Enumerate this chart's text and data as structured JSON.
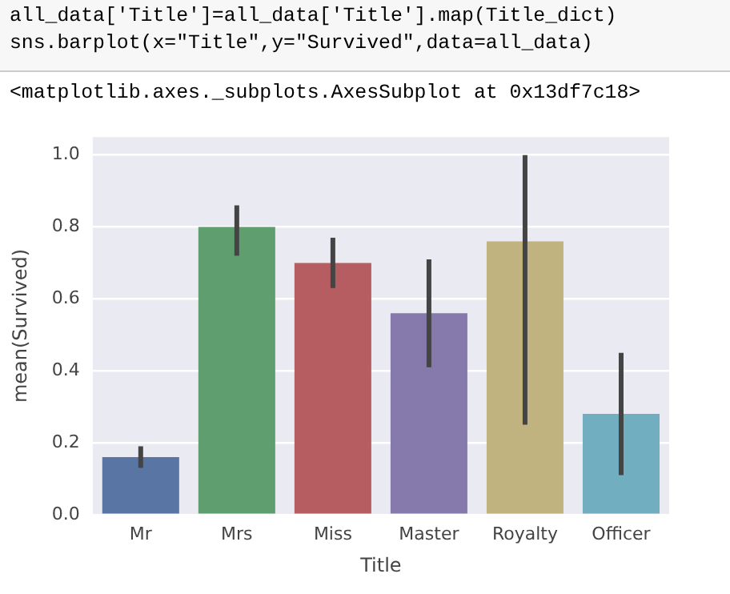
{
  "chart_data": {
    "type": "bar",
    "xlabel": "Title",
    "ylabel": "mean(Survived)",
    "annotations": [
      "all_data['Title']=all_data['Title'].map(Title_dict)",
      "sns.barplot(x=\"Title\",y=\"Survived\",data=all_data)",
      "<matplotlib.axes._subplots.AxesSubplot at 0x13df7c18>"
    ],
    "categories": [
      "Mr",
      "Mrs",
      "Miss",
      "Master",
      "Royalty",
      "Officer"
    ],
    "values": [
      0.16,
      0.8,
      0.7,
      0.56,
      0.76,
      0.28
    ],
    "colors": [
      "#5875a4",
      "#5f9e6e",
      "#b55d60",
      "#857aab",
      "#c1b37f",
      "#71aec0"
    ],
    "errors": [
      [
        0.13,
        0.19
      ],
      [
        0.72,
        0.86
      ],
      [
        0.63,
        0.77
      ],
      [
        0.41,
        0.71
      ],
      [
        0.25,
        1.0
      ],
      [
        0.11,
        0.45
      ]
    ],
    "ylim": [
      0,
      1.05
    ],
    "yticks": [
      {
        "value": 0,
        "label": "0.0"
      },
      0.2,
      0.4,
      0.6,
      0.8,
      {
        "value": 1,
        "label": "1.0"
      }
    ],
    "grid": "y",
    "legend": false
  }
}
